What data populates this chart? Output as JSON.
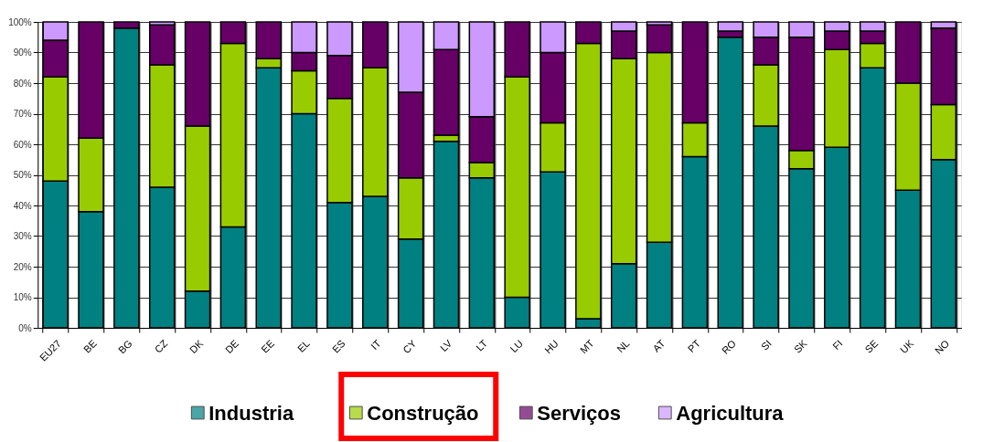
{
  "chart_data": {
    "type": "bar",
    "stacked": true,
    "categories": [
      "EU27",
      "BE",
      "BG",
      "CZ",
      "DK",
      "DE",
      "EE",
      "EL",
      "ES",
      "IT",
      "CY",
      "LV",
      "LT",
      "LU",
      "HU",
      "MT",
      "NL",
      "AT",
      "PT",
      "RO",
      "SI",
      "SK",
      "FI",
      "SE",
      "UK",
      "NO"
    ],
    "series": [
      {
        "name": "Industria",
        "color": "#008080",
        "values": [
          48,
          38,
          98,
          46,
          12,
          33,
          85,
          70,
          41,
          43,
          29,
          61,
          49,
          10,
          51,
          3,
          21,
          28,
          56,
          95,
          66,
          52,
          59,
          85,
          45,
          55
        ]
      },
      {
        "name": "Construção",
        "color": "#99cc00",
        "values": [
          34,
          24,
          0,
          40,
          54,
          60,
          3,
          14,
          34,
          42,
          20,
          2,
          5,
          72,
          16,
          90,
          67,
          62,
          11,
          0,
          20,
          6,
          32,
          8,
          35,
          18
        ]
      },
      {
        "name": "Serviços",
        "color": "#660066",
        "values": [
          12,
          38,
          2,
          13,
          34,
          7,
          12,
          6,
          14,
          15,
          28,
          28,
          15,
          18,
          23,
          7,
          9,
          9,
          33,
          2,
          9,
          37,
          6,
          4,
          20,
          25
        ]
      },
      {
        "name": "Agricultura",
        "color": "#cc99ff",
        "values": [
          6,
          0,
          0,
          1,
          0,
          0,
          0,
          10,
          11,
          0,
          23,
          9,
          31,
          0,
          10,
          0,
          3,
          1,
          0,
          3,
          5,
          5,
          3,
          3,
          0,
          2
        ]
      }
    ],
    "ylim": [
      0,
      100
    ],
    "yticks": [
      {
        "value": 0,
        "label": "0%"
      },
      {
        "value": 10,
        "label": "10%"
      },
      {
        "value": 20,
        "label": "20%"
      },
      {
        "value": 30,
        "label": "30%"
      },
      {
        "value": 40,
        "label": "40%"
      },
      {
        "value": 50,
        "label": "50%"
      },
      {
        "value": 60,
        "label": "60%"
      },
      {
        "value": 70,
        "label": "70%"
      },
      {
        "value": 80,
        "label": "80%"
      },
      {
        "value": 90,
        "label": "90%"
      },
      {
        "value": 100,
        "label": "100%"
      }
    ],
    "grid": true,
    "legend": "bottom"
  }
}
